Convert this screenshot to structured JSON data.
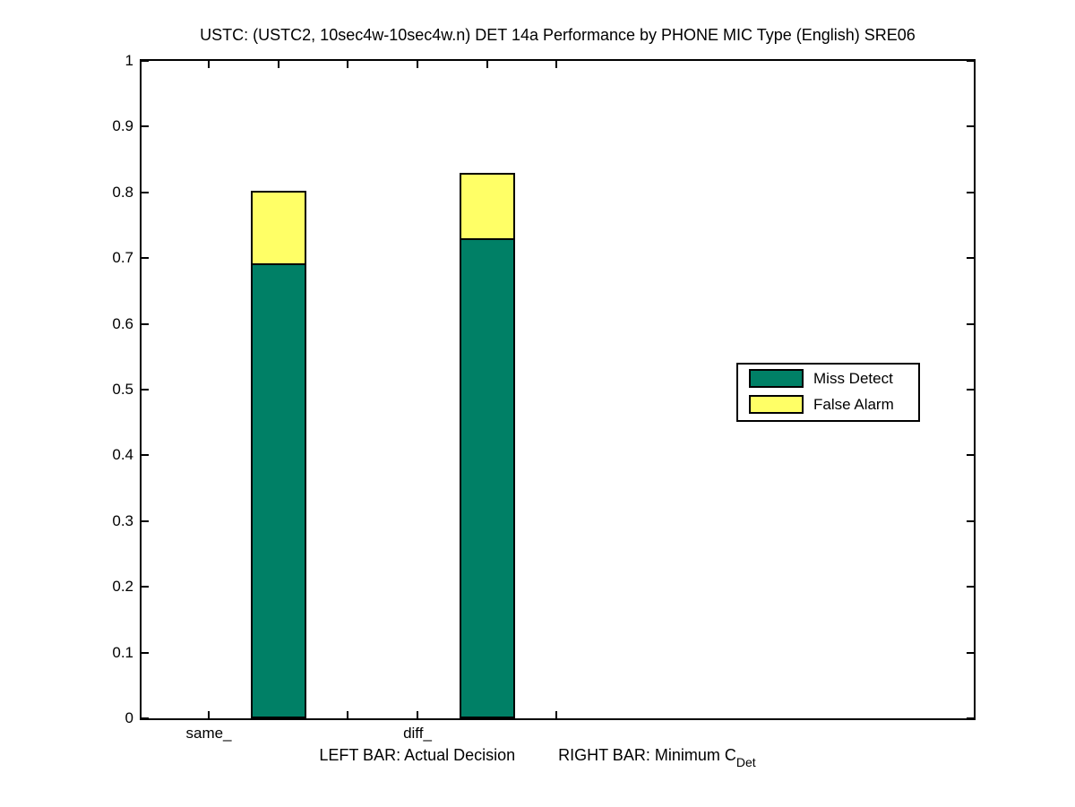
{
  "chart_data": {
    "type": "bar",
    "stacked": true,
    "title": "USTC: (USTC2, 10sec4w-10sec4w.n) DET 14a Performance by PHONE MIC Type (English) SRE06",
    "xlabel": "LEFT BAR: Actual Decision    RIGHT BAR: Minimum C_Det",
    "xlabel_parts": {
      "left": "LEFT BAR: Actual Decision",
      "right": "RIGHT BAR: Minimum C",
      "subscript": "Det"
    },
    "ylabel": "",
    "categories": [
      "same_",
      "diff_"
    ],
    "series": [
      {
        "name": "Miss Detect",
        "color": "#008066",
        "values": [
          0.69,
          0.727
        ]
      },
      {
        "name": "False Alarm",
        "color": "#FFFF66",
        "values": [
          0.113,
          0.103
        ]
      }
    ],
    "stack_totals": [
      0.803,
      0.83
    ],
    "ylim": [
      0,
      1
    ],
    "yticks": [
      0,
      0.1,
      0.2,
      0.3,
      0.4,
      0.5,
      0.6,
      0.7,
      0.8,
      0.9,
      1
    ],
    "grid": false,
    "legend_position": "middle-right",
    "bar_outline_color": "#000000",
    "background_color": "#FFFFFF"
  }
}
